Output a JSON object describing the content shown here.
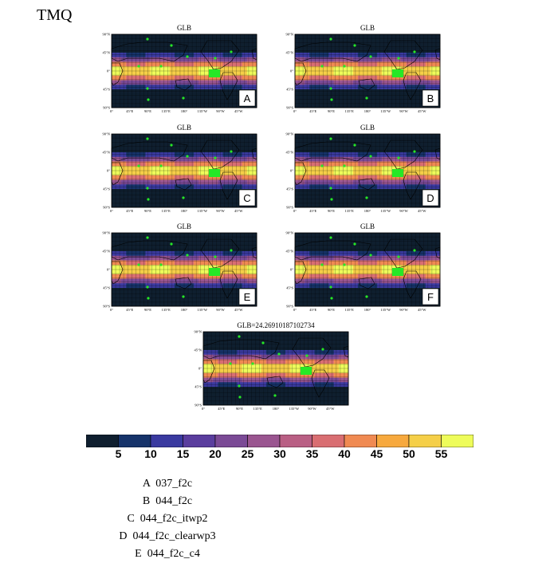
{
  "page_title": "TMQ",
  "chart_data": {
    "type": "heatmap",
    "variable": "TMQ",
    "panels": [
      {
        "title": "GLB",
        "letter": "A"
      },
      {
        "title": "GLB",
        "letter": "B"
      },
      {
        "title": "GLB",
        "letter": "C"
      },
      {
        "title": "GLB",
        "letter": "D"
      },
      {
        "title": "GLB",
        "letter": "E"
      },
      {
        "title": "GLB",
        "letter": "F"
      },
      {
        "title": "GLB=24.26910187102734",
        "letter": ""
      }
    ],
    "lat_ticks": [
      "90°N",
      "45°N",
      "0°",
      "45°S",
      "90°S"
    ],
    "lon_ticks": [
      "0°",
      "45°E",
      "90°E",
      "135°E",
      "180°",
      "135°W",
      "90°W",
      "45°W"
    ],
    "colorbar": {
      "labels": [
        "5",
        "10",
        "15",
        "20",
        "25",
        "30",
        "35",
        "40",
        "45",
        "50",
        "55"
      ],
      "colors": [
        "#0f1f2f",
        "#16336a",
        "#3a3aa0",
        "#5a3d9e",
        "#7b4a96",
        "#9a5590",
        "#b95f84",
        "#d96e72",
        "#f08a52",
        "#f7a93e",
        "#f5cf48",
        "#eefc5a"
      ]
    },
    "legend": [
      "A  037_f2c",
      "B  044_f2c",
      "C  044_f2c_itwp2",
      "D  044_f2c_clearwp3",
      "E  044_f2c_c4"
    ]
  }
}
